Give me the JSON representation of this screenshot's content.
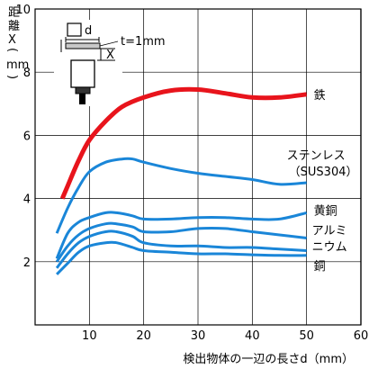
{
  "chart_data": {
    "type": "line",
    "title": "",
    "xlabel": "検出物体の一辺の長さd（mm）",
    "ylabel_chars": [
      "距",
      "離",
      "X",
      "(",
      "mm",
      ")"
    ],
    "xlim": [
      0,
      60
    ],
    "ylim": [
      0,
      10
    ],
    "xticks": [
      10,
      20,
      30,
      40,
      50,
      60
    ],
    "yticks": [
      2,
      4,
      6,
      8,
      10
    ],
    "grid": true,
    "inset": {
      "d_label": "d",
      "t_label": "t=1mm",
      "x_label": "X"
    },
    "series": [
      {
        "name": "鉄",
        "color": "#e8141c",
        "width": 5,
        "x": [
          5,
          6,
          8,
          10,
          13,
          16,
          20,
          25,
          30,
          35,
          40,
          45,
          50
        ],
        "y": [
          4.0,
          4.4,
          5.2,
          5.85,
          6.45,
          6.9,
          7.2,
          7.42,
          7.45,
          7.33,
          7.2,
          7.2,
          7.3
        ]
      },
      {
        "name": "ステンレス（SUS304）",
        "label_lines": [
          "ステンレス",
          "（SUS304）"
        ],
        "color": "#1a86d8",
        "width": 3,
        "x": [
          4,
          6,
          8,
          10,
          13,
          16,
          18,
          20,
          25,
          30,
          35,
          40,
          45,
          50
        ],
        "y": [
          2.9,
          3.7,
          4.35,
          4.85,
          5.15,
          5.25,
          5.25,
          5.15,
          4.95,
          4.8,
          4.7,
          4.6,
          4.45,
          4.5
        ]
      },
      {
        "name": "黄銅",
        "color": "#1a86d8",
        "width": 3,
        "x": [
          4,
          6,
          8,
          10,
          13,
          15,
          18,
          20,
          25,
          30,
          35,
          40,
          45,
          50
        ],
        "y": [
          2.1,
          2.9,
          3.25,
          3.4,
          3.55,
          3.55,
          3.45,
          3.35,
          3.35,
          3.4,
          3.4,
          3.35,
          3.35,
          3.55
        ]
      },
      {
        "name": "アルミ",
        "color": "#1a86d8",
        "width": 3,
        "x": [
          4,
          6,
          8,
          10,
          13,
          15,
          18,
          20,
          25,
          30,
          35,
          40,
          45,
          50
        ],
        "y": [
          2.0,
          2.5,
          2.85,
          3.05,
          3.2,
          3.2,
          3.1,
          2.95,
          2.95,
          3.05,
          3.05,
          2.95,
          2.85,
          2.75
        ]
      },
      {
        "name": "ニウム",
        "color": "#1a86d8",
        "width": 3,
        "x": [
          4,
          6,
          8,
          10,
          13,
          15,
          18,
          20,
          25,
          30,
          35,
          40,
          45,
          50
        ],
        "y": [
          1.8,
          2.25,
          2.6,
          2.8,
          2.95,
          2.95,
          2.8,
          2.6,
          2.5,
          2.5,
          2.45,
          2.45,
          2.4,
          2.35
        ]
      },
      {
        "name": "銅",
        "color": "#1a86d8",
        "width": 3,
        "x": [
          4,
          6,
          8,
          10,
          13,
          15,
          18,
          20,
          25,
          30,
          35,
          40,
          45,
          50
        ],
        "y": [
          1.6,
          1.95,
          2.3,
          2.5,
          2.6,
          2.6,
          2.45,
          2.35,
          2.3,
          2.25,
          2.25,
          2.22,
          2.2,
          2.2
        ]
      }
    ],
    "labels": [
      {
        "text": "鉄",
        "series": 0
      },
      {
        "text": "ステンレス",
        "series": 1,
        "line": 0
      },
      {
        "text": "（SUS304）",
        "series": 1,
        "line": 1
      },
      {
        "text": "黄銅",
        "series": 2
      },
      {
        "text": "アルミ",
        "series": 3
      },
      {
        "text": "ニウム",
        "series": 4
      },
      {
        "text": "銅",
        "series": 5
      }
    ]
  }
}
